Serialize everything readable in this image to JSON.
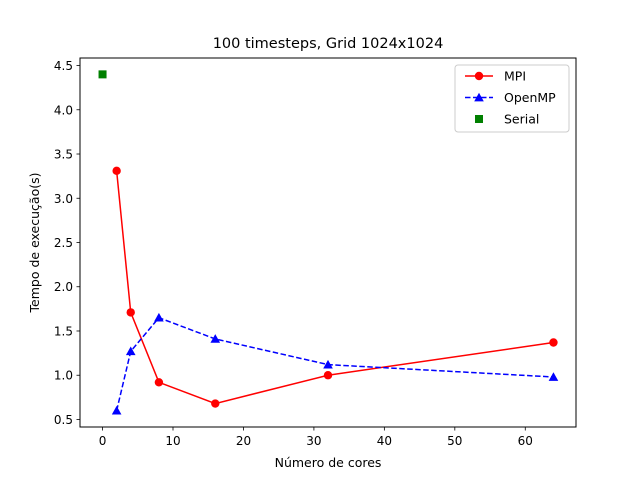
{
  "chart_data": {
    "type": "line",
    "title": "100 timesteps, Grid 1024x1024",
    "xlabel": "Número de cores",
    "ylabel": "Tempo de execução(s)",
    "xlim": [
      -3.2,
      67.2
    ],
    "ylim": [
      0.415,
      4.585
    ],
    "x_ticks": [
      0,
      10,
      20,
      30,
      40,
      50,
      60
    ],
    "x_tick_labels": [
      "0",
      "10",
      "20",
      "30",
      "40",
      "50",
      "60"
    ],
    "y_ticks": [
      0.5,
      1.0,
      1.5,
      2.0,
      2.5,
      3.0,
      3.5,
      4.0,
      4.5
    ],
    "y_tick_labels": [
      "0.5",
      "1.0",
      "1.5",
      "2.0",
      "2.5",
      "3.0",
      "3.5",
      "4.0",
      "4.5"
    ],
    "grid": false,
    "legend_position": "top-right",
    "series": [
      {
        "name": "MPI",
        "color": "#ff0000",
        "line": "solid",
        "marker": "circle",
        "x": [
          2,
          4,
          8,
          16,
          32,
          64
        ],
        "y": [
          3.31,
          1.71,
          0.92,
          0.68,
          1.0,
          1.37
        ]
      },
      {
        "name": "OpenMP",
        "color": "#0000ff",
        "line": "dashed",
        "marker": "triangle",
        "x": [
          2,
          4,
          8,
          16,
          32,
          64
        ],
        "y": [
          0.6,
          1.27,
          1.65,
          1.41,
          1.12,
          0.98
        ]
      },
      {
        "name": "Serial",
        "color": "#008000",
        "line": "none",
        "marker": "square",
        "x": [
          0
        ],
        "y": [
          4.4
        ]
      }
    ]
  }
}
